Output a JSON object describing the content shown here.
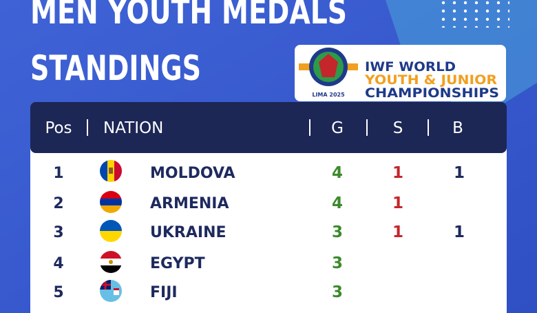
{
  "header": {
    "title_line1": "MEN YOUTH MEDALS",
    "title_line2": "STANDINGS"
  },
  "logo": {
    "line1": "IWF WORLD",
    "line2": "YOUTH & JUNIOR",
    "line3": "CHAMPIONSHIPS",
    "caption": "LIMA 2025"
  },
  "table": {
    "columns": [
      "Pos",
      "NATION",
      "G",
      "S",
      "B"
    ],
    "rows": [
      {
        "pos": 1,
        "nation": "MOLDOVA",
        "g": 4,
        "s": 1,
        "b": 1
      },
      {
        "pos": 2,
        "nation": "ARMENIA",
        "g": 4,
        "s": 1
      },
      {
        "pos": 3,
        "nation": "UKRAINE",
        "g": 3,
        "s": 1,
        "b": 1
      },
      {
        "pos": 4,
        "nation": "EGYPT",
        "g": 3
      },
      {
        "pos": 5,
        "nation": "FIJI",
        "g": 3
      }
    ]
  }
}
